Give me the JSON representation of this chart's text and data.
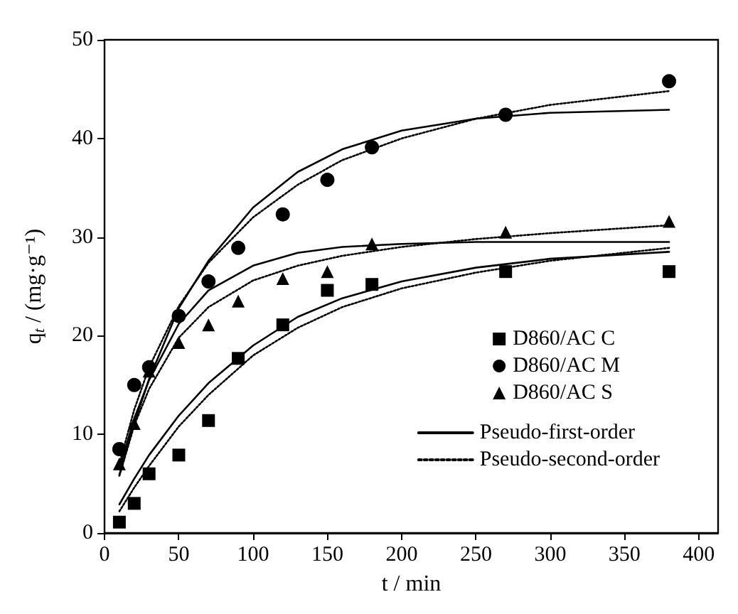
{
  "chart_data": {
    "type": "scatter",
    "xlabel": "t / min",
    "ylabel": "q$_{t}$ / (mg·g⁻¹)",
    "xlim": [
      0,
      413
    ],
    "ylim": [
      0,
      50
    ],
    "xticks": [
      0,
      50,
      100,
      150,
      200,
      250,
      300,
      350,
      400
    ],
    "yticks": [
      0,
      10,
      20,
      30,
      40,
      50
    ],
    "grid": false,
    "legend": "bottom right",
    "series": [
      {
        "name": "D860/AC C",
        "marker": "square",
        "color": "#000000",
        "x": [
          10,
          20,
          30,
          50,
          70,
          90,
          120,
          150,
          180,
          270,
          380
        ],
        "values": [
          1.1,
          3.0,
          6.0,
          7.9,
          11.4,
          17.7,
          21.1,
          24.6,
          25.2,
          26.5,
          26.5
        ]
      },
      {
        "name": "D860/AC M",
        "marker": "circle",
        "color": "#000000",
        "x": [
          10,
          20,
          30,
          50,
          70,
          90,
          120,
          150,
          180,
          270,
          380
        ],
        "values": [
          8.5,
          15.0,
          16.8,
          22.0,
          25.5,
          28.9,
          32.3,
          35.8,
          39.1,
          42.4,
          45.8
        ]
      },
      {
        "name": "D860/AC S",
        "marker": "triangle",
        "color": "#000000",
        "x": [
          10,
          20,
          30,
          50,
          70,
          90,
          120,
          150,
          180,
          270,
          380
        ],
        "values": [
          7.0,
          11.1,
          16.4,
          19.3,
          21.1,
          23.5,
          25.8,
          26.5,
          29.3,
          30.5,
          31.6
        ]
      },
      {
        "name": "Pseudo-first-order",
        "type": "line",
        "line_style": "solid",
        "marker": "none",
        "color": "#000000",
        "x": [
          10,
          20,
          30,
          50,
          70,
          100,
          130,
          160,
          200,
          250,
          300,
          380
        ],
        "values": [
          2.9,
          5.5,
          7.9,
          11.9,
          15.2,
          19.0,
          21.9,
          23.8,
          25.5,
          26.9,
          27.8,
          28.5
        ]
      },
      {
        "name": "Pseudo-second-order",
        "type": "line",
        "line_style": "dotted",
        "marker": "none",
        "color": "#000000",
        "x": [
          10,
          20,
          30,
          50,
          70,
          100,
          130,
          160,
          200,
          250,
          300,
          380
        ],
        "values": [
          2.2,
          4.6,
          6.8,
          10.8,
          14.0,
          18.0,
          20.8,
          22.9,
          24.8,
          26.4,
          27.6,
          28.9
        ]
      },
      {
        "type": "line",
        "line_style": "solid",
        "marker": "none",
        "color": "#000000",
        "x": [
          10,
          20,
          30,
          50,
          70,
          100,
          130,
          160,
          200,
          250,
          300,
          380
        ],
        "values": [
          5.9,
          11.1,
          15.6,
          22.8,
          27.6,
          33.0,
          36.6,
          38.9,
          40.8,
          42.0,
          42.6,
          42.9
        ]
      },
      {
        "type": "line",
        "line_style": "dotted",
        "marker": "none",
        "color": "#000000",
        "x": [
          10,
          20,
          30,
          50,
          70,
          100,
          130,
          160,
          200,
          250,
          300,
          380
        ],
        "values": [
          7.0,
          12.5,
          16.8,
          23.0,
          27.4,
          32.0,
          35.3,
          37.8,
          40.0,
          42.0,
          43.4,
          44.8
        ]
      },
      {
        "type": "line",
        "line_style": "solid",
        "marker": "none",
        "color": "#000000",
        "x": [
          10,
          20,
          30,
          50,
          70,
          100,
          130,
          160,
          200,
          250,
          300,
          380
        ],
        "values": [
          6.5,
          11.6,
          15.5,
          21.2,
          24.6,
          27.1,
          28.4,
          29.0,
          29.3,
          29.5,
          29.5,
          29.5
        ]
      },
      {
        "type": "line",
        "line_style": "dotted",
        "marker": "none",
        "color": "#000000",
        "x": [
          10,
          20,
          30,
          50,
          70,
          100,
          130,
          160,
          200,
          250,
          300,
          380
        ],
        "values": [
          5.8,
          10.9,
          14.6,
          19.8,
          22.9,
          25.6,
          27.1,
          28.1,
          29.0,
          29.8,
          30.4,
          31.2
        ]
      }
    ]
  }
}
